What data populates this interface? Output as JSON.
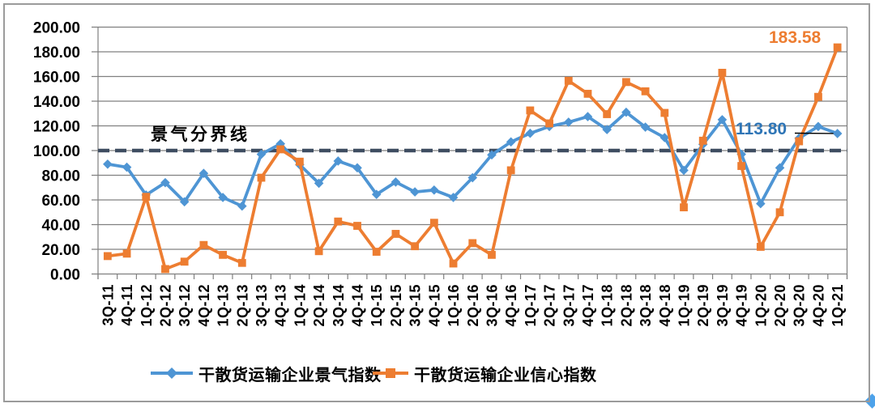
{
  "chart_data": {
    "type": "line",
    "title": "",
    "xlabel": "",
    "ylabel": "",
    "ylim": [
      0,
      200
    ],
    "ytick_step": 20,
    "ytick_labels": [
      "0.00",
      "20.00",
      "40.00",
      "60.00",
      "80.00",
      "100.00",
      "120.00",
      "140.00",
      "160.00",
      "180.00",
      "200.00"
    ],
    "grid": true,
    "legend_position": "bottom",
    "categories": [
      "3Q-11",
      "4Q-11",
      "1Q-12",
      "2Q-12",
      "3Q-12",
      "4Q-12",
      "1Q-13",
      "2Q-13",
      "3Q-13",
      "4Q-13",
      "1Q-14",
      "2Q-14",
      "3Q-14",
      "4Q-14",
      "1Q-15",
      "2Q-15",
      "3Q-15",
      "4Q-15",
      "1Q-16",
      "2Q-16",
      "3Q-16",
      "4Q-16",
      "1Q-17",
      "2Q-17",
      "3Q-17",
      "4Q-17",
      "1Q-18",
      "2Q-18",
      "3Q-18",
      "4Q-18",
      "1Q-19",
      "2Q-19",
      "3Q-19",
      "4Q-19",
      "1Q-20",
      "2Q-20",
      "3Q-20",
      "4Q-20",
      "1Q-21"
    ],
    "series": [
      {
        "name": "干散货运输企业景气指数",
        "marker": "diamond",
        "color": "#4E95D4",
        "values": [
          89,
          86.5,
          64,
          74,
          58.5,
          81.5,
          62,
          55,
          97,
          105.5,
          88.5,
          73.5,
          91.5,
          86,
          64.5,
          74.5,
          66.5,
          68,
          62,
          78,
          96.5,
          107,
          114,
          119.5,
          123,
          127.5,
          117,
          131,
          119,
          110.5,
          84,
          105,
          125,
          97,
          57,
          86,
          110,
          119.5,
          113.8
        ]
      },
      {
        "name": "干散货运输企业信心指数",
        "marker": "square",
        "color": "#ED7D31",
        "values": [
          14.5,
          16.5,
          62.5,
          4,
          10,
          23.5,
          15.5,
          9,
          78,
          101,
          91,
          18.5,
          42.5,
          39,
          18,
          32.5,
          22.5,
          41.5,
          8.5,
          25,
          15.5,
          84,
          132.5,
          122,
          156.5,
          146,
          129.5,
          155.5,
          148,
          130.5,
          54,
          108,
          163,
          87.5,
          22,
          50,
          107.5,
          143.5,
          183.58
        ]
      }
    ],
    "boundary_line": {
      "label": "景气分界线",
      "value": 100,
      "style": "dashed",
      "color": "#3E4D61"
    },
    "annotations": [
      {
        "text": "183.58",
        "category": "1Q-21",
        "series_index": 1,
        "color": "#ED7D31"
      },
      {
        "text": "113.80",
        "category": "1Q-21",
        "series_index": 0,
        "color": "#2E75B6",
        "connector": true
      }
    ],
    "axis_color": "#808080",
    "text_color": "#000000"
  }
}
